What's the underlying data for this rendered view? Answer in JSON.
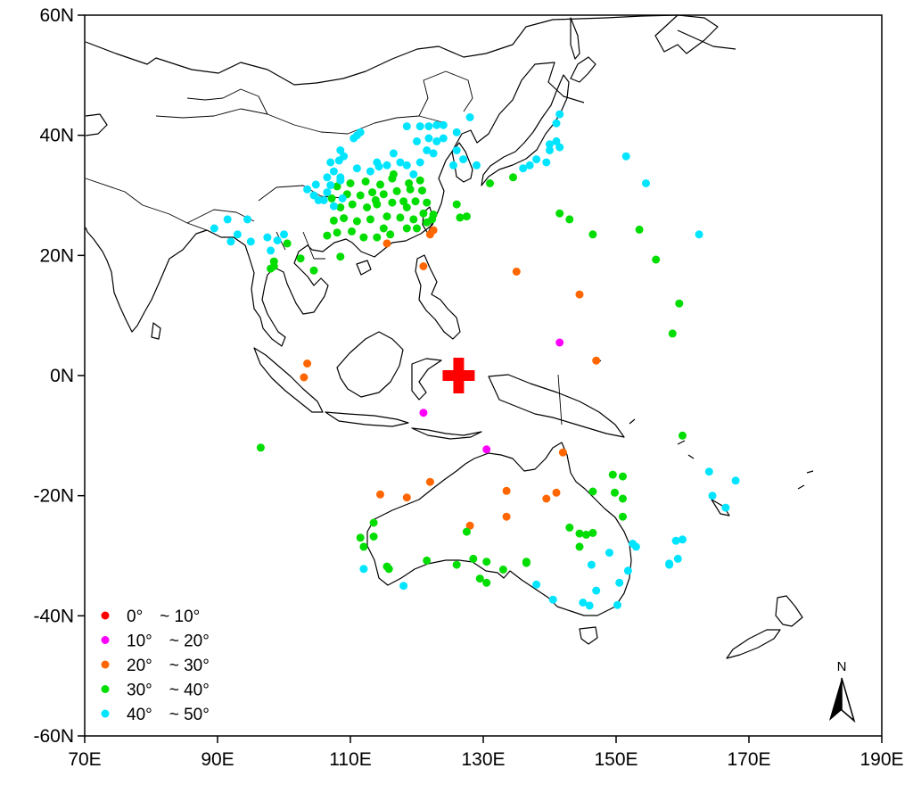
{
  "chart_data": {
    "type": "scatter",
    "title": "",
    "xlabel": "",
    "ylabel": "",
    "xlim": [
      70,
      190
    ],
    "ylim": [
      -60,
      60
    ],
    "x_ticks": [
      "70E",
      "90E",
      "110E",
      "130E",
      "150E",
      "170E",
      "190E"
    ],
    "y_ticks": [
      "60N",
      "40N",
      "20N",
      "0N",
      "-20N",
      "-40N",
      "-60N"
    ],
    "center_marker": {
      "lon": 126.3,
      "lat": 0,
      "color": "#ff0000",
      "shape": "cross"
    },
    "north_arrow_label": "N",
    "legend_position": "bottom-left",
    "legend_degree": "°",
    "legend_tilde": "~",
    "series": [
      {
        "name": "0~10",
        "legend_from": "0",
        "legend_to": "10",
        "color": "#ff0000",
        "points": []
      },
      {
        "name": "10~20",
        "legend_from": "10",
        "legend_to": "20",
        "color": "#ff00ff",
        "points": [
          [
            141.5,
            5.5
          ],
          [
            121,
            -6.2
          ],
          [
            130.5,
            -12.3
          ]
        ]
      },
      {
        "name": "20~30",
        "legend_from": "20",
        "legend_to": "30",
        "color": "#ff6600",
        "points": [
          [
            115.5,
            22
          ],
          [
            122,
            23.5
          ],
          [
            122.5,
            24.2
          ],
          [
            121,
            18.2
          ],
          [
            135,
            17.3
          ],
          [
            144.5,
            13.5
          ],
          [
            147,
            2.5
          ],
          [
            103.5,
            2
          ],
          [
            103,
            -0.3
          ],
          [
            142,
            -12.8
          ],
          [
            114.5,
            -19.8
          ],
          [
            118.5,
            -20.3
          ],
          [
            122,
            -17.7
          ],
          [
            133.5,
            -19.2
          ],
          [
            133.5,
            -23.5
          ],
          [
            139.5,
            -20.5
          ],
          [
            141,
            -19.5
          ],
          [
            128,
            -25
          ]
        ]
      },
      {
        "name": "30~40",
        "legend_from": "30",
        "legend_to": "40",
        "color": "#00dd00",
        "points": [
          [
            106.5,
            23.3
          ],
          [
            108,
            23.8
          ],
          [
            110.2,
            24
          ],
          [
            112,
            23
          ],
          [
            114,
            23
          ],
          [
            116,
            23.5
          ],
          [
            118.5,
            24.5
          ],
          [
            120,
            24.5
          ],
          [
            121.5,
            25.5
          ],
          [
            122.3,
            26
          ],
          [
            107.5,
            25.8
          ],
          [
            109,
            26.2
          ],
          [
            111,
            25.7
          ],
          [
            113,
            26
          ],
          [
            115.5,
            26.5
          ],
          [
            117.5,
            26.3
          ],
          [
            119.5,
            26
          ],
          [
            121,
            27
          ],
          [
            122.5,
            26.8
          ],
          [
            108.5,
            28
          ],
          [
            110.3,
            28.5
          ],
          [
            112.5,
            28
          ],
          [
            114,
            28.5
          ],
          [
            116.3,
            28.8
          ],
          [
            118,
            29
          ],
          [
            119.8,
            29
          ],
          [
            121.5,
            28.8
          ],
          [
            107.2,
            29.5
          ],
          [
            109.5,
            30.2
          ],
          [
            111.5,
            30
          ],
          [
            113.3,
            30.5
          ],
          [
            115,
            30.2
          ],
          [
            117,
            30.7
          ],
          [
            119,
            31
          ],
          [
            120.8,
            30.8
          ],
          [
            108,
            31.5
          ],
          [
            110,
            32
          ],
          [
            112.3,
            32.3
          ],
          [
            114.5,
            31.8
          ],
          [
            116.3,
            32.8
          ],
          [
            118.8,
            32
          ],
          [
            120.5,
            32.5
          ],
          [
            113.8,
            29.2
          ],
          [
            118.5,
            28
          ],
          [
            115,
            24.5
          ],
          [
            116.5,
            33.5
          ],
          [
            126,
            28.5
          ],
          [
            127.5,
            26.5
          ],
          [
            126.5,
            26.3
          ],
          [
            131,
            32
          ],
          [
            134.5,
            33
          ],
          [
            141.5,
            27
          ],
          [
            143,
            26
          ],
          [
            146.5,
            23.5
          ],
          [
            153.5,
            24.3
          ],
          [
            156,
            19.3
          ],
          [
            159.5,
            12
          ],
          [
            158.5,
            7
          ],
          [
            160,
            -10
          ],
          [
            100.5,
            22
          ],
          [
            102.5,
            19.5
          ],
          [
            98.5,
            19
          ],
          [
            98,
            17.8
          ],
          [
            98.5,
            18.2
          ],
          [
            104.5,
            17.5
          ],
          [
            108.5,
            19.8
          ],
          [
            96.5,
            -12
          ],
          [
            111.5,
            -27
          ],
          [
            112,
            -28.5
          ],
          [
            113.5,
            -24.5
          ],
          [
            113.5,
            -26.8
          ],
          [
            115.5,
            -31.8
          ],
          [
            115.8,
            -32.2
          ],
          [
            121.5,
            -30.8
          ],
          [
            126,
            -31.5
          ],
          [
            127.5,
            -26
          ],
          [
            128.5,
            -30.5
          ],
          [
            129.5,
            -33.8
          ],
          [
            130.5,
            -34.5
          ],
          [
            130.5,
            -31
          ],
          [
            133,
            -32.3
          ],
          [
            136.5,
            -31
          ],
          [
            136.5,
            -31.2
          ],
          [
            143,
            -25.3
          ],
          [
            144.5,
            -26.3
          ],
          [
            145.5,
            -26.5
          ],
          [
            146.5,
            -26.2
          ],
          [
            144.5,
            -28.5
          ],
          [
            146.5,
            -19.3
          ],
          [
            149.5,
            -16.5
          ],
          [
            151,
            -16.8
          ],
          [
            149.8,
            -19.5
          ],
          [
            151,
            -20.5
          ],
          [
            151,
            -23.5
          ]
        ]
      },
      {
        "name": "40~50",
        "legend_from": "40",
        "legend_to": "50",
        "color": "#00e5ff",
        "points": [
          [
            89.5,
            24.5
          ],
          [
            91.5,
            26
          ],
          [
            93,
            23.5
          ],
          [
            94.5,
            26
          ],
          [
            92,
            22.3
          ],
          [
            95,
            22.3
          ],
          [
            97.5,
            23
          ],
          [
            99,
            22.5
          ],
          [
            100,
            23.5
          ],
          [
            98,
            20.8
          ],
          [
            103.5,
            31
          ],
          [
            104.5,
            30
          ],
          [
            105.2,
            29.2
          ],
          [
            106,
            29.2
          ],
          [
            104.8,
            31.8
          ],
          [
            106.5,
            30.5
          ],
          [
            107,
            31.7
          ],
          [
            107.5,
            28.2
          ],
          [
            108.8,
            29.5
          ],
          [
            106.5,
            33
          ],
          [
            107.5,
            34
          ],
          [
            108.5,
            33
          ],
          [
            108.5,
            32.5
          ],
          [
            107,
            35.5
          ],
          [
            108.3,
            35.8
          ],
          [
            109,
            36.5
          ],
          [
            108.5,
            37.5
          ],
          [
            111,
            34.5
          ],
          [
            113,
            34
          ],
          [
            114.3,
            34.8
          ],
          [
            114,
            35.5
          ],
          [
            115.5,
            35
          ],
          [
            117.5,
            35.5
          ],
          [
            118.5,
            35
          ],
          [
            116.5,
            37
          ],
          [
            119.5,
            33.5
          ],
          [
            120.5,
            35.5
          ],
          [
            121.5,
            37.5
          ],
          [
            122.5,
            37
          ],
          [
            120,
            39
          ],
          [
            121.8,
            39.5
          ],
          [
            123,
            39
          ],
          [
            124,
            39.5
          ],
          [
            118.5,
            41.5
          ],
          [
            120.5,
            41.5
          ],
          [
            121.8,
            41.5
          ],
          [
            123,
            41.7
          ],
          [
            124,
            41.7
          ],
          [
            126,
            40.5
          ],
          [
            128,
            43
          ],
          [
            111,
            40
          ],
          [
            111.5,
            40.5
          ],
          [
            110.5,
            39.5
          ],
          [
            126,
            37.5
          ],
          [
            125.5,
            35
          ],
          [
            127,
            36
          ],
          [
            129,
            35
          ],
          [
            136,
            34.5
          ],
          [
            137,
            35
          ],
          [
            138,
            36
          ],
          [
            139.5,
            35.5
          ],
          [
            140,
            37.5
          ],
          [
            140,
            38.5
          ],
          [
            141,
            39
          ],
          [
            141,
            42
          ],
          [
            141.5,
            43.5
          ],
          [
            141.5,
            38
          ],
          [
            151.5,
            36.5
          ],
          [
            154.5,
            32
          ],
          [
            162.5,
            23.5
          ],
          [
            164,
            -16
          ],
          [
            164.5,
            -20
          ],
          [
            166.5,
            -22
          ],
          [
            168,
            -17.5
          ],
          [
            159,
            -27.5
          ],
          [
            158,
            -31.3
          ],
          [
            159.3,
            -30.5
          ],
          [
            158,
            -31.5
          ],
          [
            160,
            -27.3
          ],
          [
            152.5,
            -28
          ],
          [
            153,
            -28.5
          ],
          [
            151.8,
            -32.5
          ],
          [
            150.5,
            -34.5
          ],
          [
            150.2,
            -38.2
          ],
          [
            147,
            -35.8
          ],
          [
            146,
            -38.3
          ],
          [
            145,
            -37.8
          ],
          [
            140.5,
            -37.3
          ],
          [
            138,
            -34.8
          ],
          [
            118,
            -35
          ],
          [
            112,
            -32.2
          ],
          [
            146.3,
            -31.5
          ],
          [
            149,
            -29.5
          ]
        ]
      }
    ]
  }
}
